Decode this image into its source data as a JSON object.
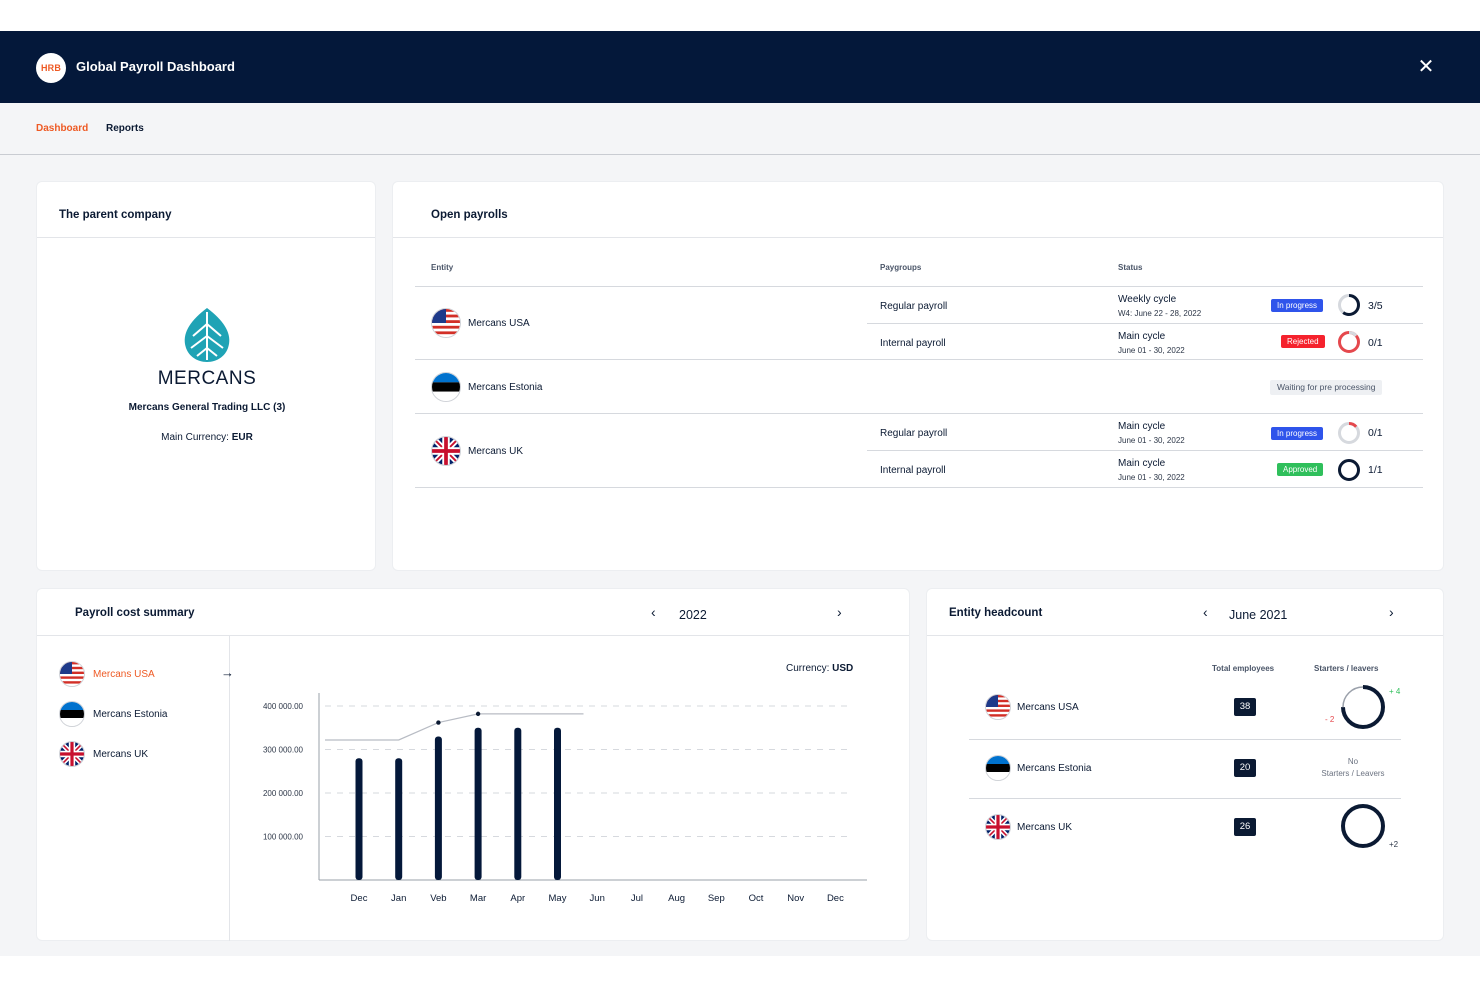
{
  "app": {
    "logo_text": "HRB",
    "title": "Global Payroll Dashboard"
  },
  "nav": {
    "tabs": [
      {
        "label": "Dashboard"
      },
      {
        "label": "Reports"
      }
    ]
  },
  "parent_company": {
    "title": "The parent company",
    "logo_text": "MERCANS",
    "company_name": "Mercans General Trading LLC (3)",
    "currency_label": "Main Currency:",
    "currency_value": "EUR"
  },
  "open_payrolls": {
    "title": "Open payrolls",
    "columns": {
      "entity": "Entity",
      "paygroups": "Paygroups",
      "status": "Status"
    },
    "entities": [
      {
        "name": "Mercans USA",
        "flag": "us-flag-icon",
        "rows": [
          {
            "paygroup": "Regular payroll",
            "cycle": "Weekly cycle",
            "dates": "W4: June 22 - 28, 2022",
            "badge": "In progress",
            "count": "3/5"
          },
          {
            "paygroup": "Internal payroll",
            "cycle": "Main cycle",
            "dates": "June 01 - 30, 2022",
            "badge": "Rejected",
            "count": "0/1"
          }
        ]
      },
      {
        "name": "Mercans Estonia",
        "flag": "ee-flag-icon",
        "status": "Waiting for pre processing"
      },
      {
        "name": "Mercans UK",
        "flag": "uk-flag-icon",
        "rows": [
          {
            "paygroup": "Regular payroll",
            "cycle": "Main cycle",
            "dates": "June 01 - 30, 2022",
            "badge": "In progress",
            "count": "0/1"
          },
          {
            "paygroup": "Internal payroll",
            "cycle": "Main cycle",
            "dates": "June 01 - 30, 2022",
            "badge": "Approved",
            "count": "1/1"
          }
        ]
      }
    ]
  },
  "cost_summary": {
    "title": "Payroll cost summary",
    "year": "2022",
    "entities": [
      {
        "name": "Mercans USA",
        "active": true
      },
      {
        "name": "Mercans Estonia"
      },
      {
        "name": "Mercans UK"
      }
    ],
    "currency_label": "Currency:",
    "currency_value": "USD"
  },
  "headcount": {
    "title": "Entity headcount",
    "period": "June 2021",
    "col_total": "Total employees",
    "col_starters": "Starters / leavers",
    "rows": [
      {
        "name": "Mercans USA",
        "total": "38",
        "starters": "+ 4",
        "leavers": "- 2"
      },
      {
        "name": "Mercans Estonia",
        "total": "20",
        "none_line1": "No",
        "none_line2": "Starters / Leavers"
      },
      {
        "name": "Mercans UK",
        "total": "26",
        "starters": "+2"
      }
    ]
  },
  "chart_data": {
    "type": "bar",
    "categories": [
      "Dec",
      "Jan",
      "Veb",
      "Mar",
      "Apr",
      "May",
      "Jun",
      "Jul",
      "Aug",
      "Sep",
      "Oct",
      "Nov",
      "Dec"
    ],
    "series": [
      {
        "type": "bar",
        "values": [
          280000,
          280000,
          330000,
          350000,
          350000,
          350000,
          null,
          null,
          null,
          null,
          null,
          null,
          null
        ]
      },
      {
        "type": "line",
        "values": [
          322000,
          322000,
          362000,
          382000,
          382000,
          382000,
          null,
          null,
          null,
          null,
          null,
          null,
          null
        ]
      }
    ],
    "yticks": [
      100000,
      200000,
      300000,
      400000
    ],
    "ytick_labels": [
      "100 000.00",
      "200 000.00",
      "300 000.00",
      "400 000.00"
    ],
    "ylim": [
      0,
      430000
    ],
    "grid": true
  }
}
